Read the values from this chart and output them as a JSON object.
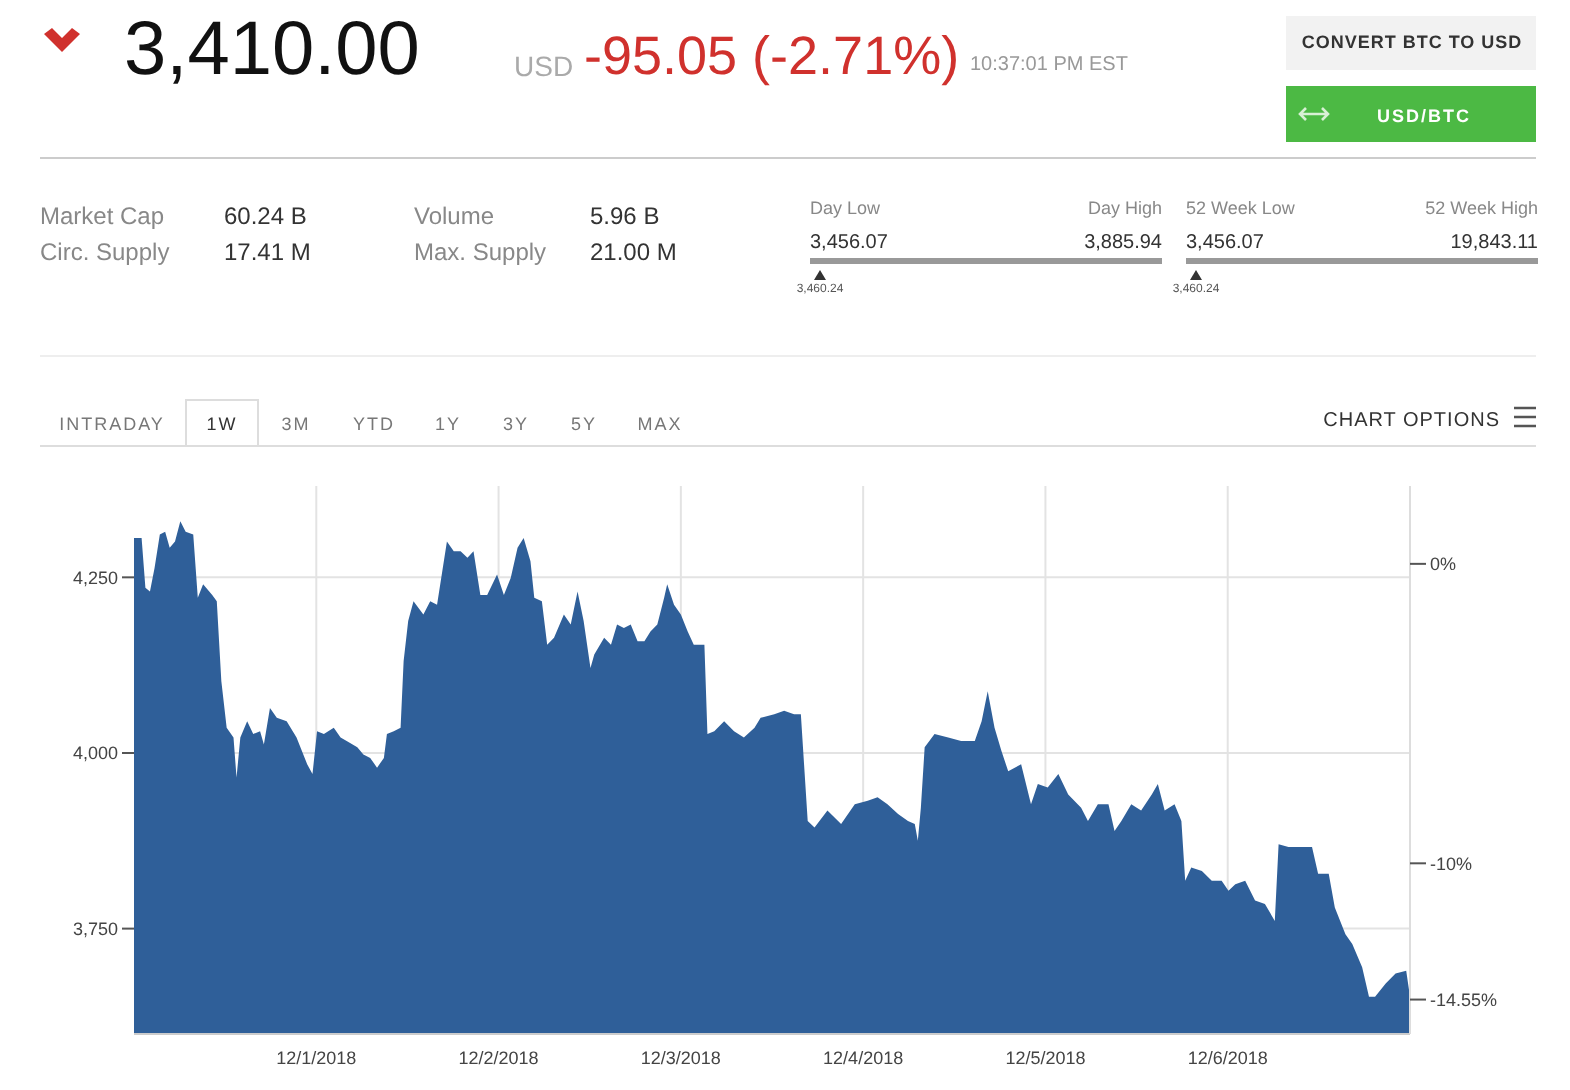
{
  "chart_data": {
    "type": "area",
    "color": "#2f5f99",
    "x": [
      "2018-11-30T00:00",
      "2018-11-30T01:00",
      "2018-11-30T01:30",
      "2018-11-30T02:06",
      "2018-11-30T02:42",
      "2018-11-30T03:24",
      "2018-11-30T04:06",
      "2018-11-30T04:42",
      "2018-11-30T05:24",
      "2018-11-30T06:06",
      "2018-11-30T06:48",
      "2018-11-30T07:48",
      "2018-11-30T08:24",
      "2018-11-30T09:06",
      "2018-11-30T10:18",
      "2018-11-30T10:54",
      "2018-11-30T11:30",
      "2018-11-30T12:12",
      "2018-11-30T13:06",
      "2018-11-30T13:30",
      "2018-11-30T14:00",
      "2018-11-30T14:54",
      "2018-11-30T15:42",
      "2018-11-30T16:36",
      "2018-11-30T17:06",
      "2018-11-30T17:54",
      "2018-11-30T18:48",
      "2018-11-30T20:06",
      "2018-11-30T21:24",
      "2018-11-30T22:48",
      "2018-11-30T23:30",
      "2018-12-01T00:06",
      "2018-12-01T01:00",
      "2018-12-01T02:18",
      "2018-12-01T03:12",
      "2018-12-01T04:00",
      "2018-12-01T05:24",
      "2018-12-01T06:12",
      "2018-12-01T07:06",
      "2018-12-01T08:00",
      "2018-12-01T08:54",
      "2018-12-01T09:18",
      "2018-12-01T10:12",
      "2018-12-01T11:06",
      "2018-12-01T11:30",
      "2018-12-01T12:06",
      "2018-12-01T12:48",
      "2018-12-01T14:06",
      "2018-12-01T15:00",
      "2018-12-01T15:54",
      "2018-12-01T17:12",
      "2018-12-01T18:06",
      "2018-12-01T19:00",
      "2018-12-01T19:54",
      "2018-12-01T20:42",
      "2018-12-01T21:36",
      "2018-12-01T22:30",
      "2018-12-01T23:48",
      "2018-12-02T00:42",
      "2018-12-02T01:36",
      "2018-12-02T02:30",
      "2018-12-02T03:18",
      "2018-12-02T04:12",
      "2018-12-02T04:42",
      "2018-12-02T05:42",
      "2018-12-02T06:24",
      "2018-12-02T07:18",
      "2018-12-02T08:36",
      "2018-12-02T09:30",
      "2018-12-02T10:24",
      "2018-12-02T11:12",
      "2018-12-02T12:06",
      "2018-12-02T12:36",
      "2018-12-02T13:54",
      "2018-12-02T14:48",
      "2018-12-02T15:36",
      "2018-12-02T16:30",
      "2018-12-02T17:24",
      "2018-12-02T18:18",
      "2018-12-02T19:12",
      "2018-12-02T20:00",
      "2018-12-02T20:54",
      "2018-12-02T21:48",
      "2018-12-02T22:12",
      "2018-12-02T23:06",
      "2018-12-03T00:00",
      "2018-12-03T00:54",
      "2018-12-03T01:42",
      "2018-12-03T03:06",
      "2018-12-03T03:30",
      "2018-12-03T04:24",
      "2018-12-03T05:42",
      "2018-12-03T07:00",
      "2018-12-03T08:18",
      "2018-12-03T09:42",
      "2018-12-03T10:30",
      "2018-12-03T12:18",
      "2018-12-03T13:36",
      "2018-12-03T14:54",
      "2018-12-03T15:48",
      "2018-12-03T16:42",
      "2018-12-03T17:36",
      "2018-12-03T19:18",
      "2018-12-03T21:06",
      "2018-12-03T22:54",
      "2018-12-04T00:36",
      "2018-12-04T01:54",
      "2018-12-04T03:12",
      "2018-12-04T04:36",
      "2018-12-04T05:54",
      "2018-12-04T06:48",
      "2018-12-04T07:12",
      "2018-12-04T07:36",
      "2018-12-04T08:06",
      "2018-12-04T09:24",
      "2018-12-04T11:12",
      "2018-12-04T12:54",
      "2018-12-04T14:42",
      "2018-12-04T15:36",
      "2018-12-04T16:24",
      "2018-12-04T17:18",
      "2018-12-04T18:12",
      "2018-12-04T19:06",
      "2018-12-04T20:48",
      "2018-12-04T22:06",
      "2018-12-04T23:00",
      "2018-12-05T00:18",
      "2018-12-05T01:42",
      "2018-12-05T03:00",
      "2018-12-05T04:42",
      "2018-12-05T05:36",
      "2018-12-05T06:54",
      "2018-12-05T08:18",
      "2018-12-05T09:06",
      "2018-12-05T10:00",
      "2018-12-05T11:18",
      "2018-12-05T12:36",
      "2018-12-05T14:00",
      "2018-12-05T14:48",
      "2018-12-05T15:42",
      "2018-12-05T17:00",
      "2018-12-05T17:54",
      "2018-12-05T18:24",
      "2018-12-05T19:12",
      "2018-12-05T20:36",
      "2018-12-05T21:54",
      "2018-12-05T23:12",
      "2018-12-06T00:06",
      "2018-12-06T01:00",
      "2018-12-06T02:18",
      "2018-12-06T03:36",
      "2018-12-06T04:54",
      "2018-12-06T06:12",
      "2018-12-06T06:42",
      "2018-12-06T08:00",
      "2018-12-06T09:42",
      "2018-12-06T11:06",
      "2018-12-06T11:54",
      "2018-12-06T13:18",
      "2018-12-06T14:06",
      "2018-12-06T15:30",
      "2018-12-06T16:24",
      "2018-12-06T17:42",
      "2018-12-06T18:36",
      "2018-12-06T19:24",
      "2018-12-06T20:48",
      "2018-12-06T22:06",
      "2018-12-06T23:30",
      "2018-12-07T00:00"
    ],
    "values": [
      4306,
      4306,
      4235,
      4230,
      4263,
      4311,
      4315,
      4292,
      4301,
      4330,
      4315,
      4311,
      4221,
      4240,
      4225,
      4216,
      4102,
      4036,
      4022,
      3965,
      4022,
      4045,
      4027,
      4031,
      4012,
      4064,
      4050,
      4045,
      4022,
      3984,
      3970,
      4031,
      4027,
      4036,
      4022,
      4017,
      4008,
      3998,
      3993,
      3979,
      3993,
      4027,
      4031,
      4036,
      4131,
      4188,
      4216,
      4197,
      4216,
      4211,
      4301,
      4287,
      4287,
      4278,
      4287,
      4225,
      4225,
      4254,
      4225,
      4249,
      4292,
      4306,
      4273,
      4221,
      4216,
      4154,
      4164,
      4197,
      4183,
      4230,
      4188,
      4121,
      4140,
      4164,
      4154,
      4183,
      4178,
      4183,
      4159,
      4159,
      4173,
      4183,
      4221,
      4240,
      4211,
      4197,
      4173,
      4154,
      4154,
      4027,
      4031,
      4045,
      4031,
      4022,
      4036,
      4050,
      4055,
      4060,
      4055,
      4055,
      3903,
      3894,
      3918,
      3899,
      3927,
      3932,
      3937,
      3927,
      3913,
      3903,
      3899,
      3875,
      3922,
      4008,
      4027,
      4022,
      4017,
      4017,
      4045,
      4088,
      4036,
      4003,
      3974,
      3984,
      3927,
      3956,
      3951,
      3970,
      3941,
      3922,
      3903,
      3927,
      3927,
      3889,
      3903,
      3927,
      3918,
      3941,
      3956,
      3918,
      3927,
      3903,
      3818,
      3837,
      3832,
      3818,
      3818,
      3804,
      3813,
      3818,
      3790,
      3785,
      3761,
      3870,
      3866,
      3866,
      3866,
      3828,
      3828,
      3780,
      3742,
      3728,
      3695,
      3653,
      3653,
      3672,
      3686,
      3690,
      3653
    ],
    "xlim": [
      "2018-11-30T00:00",
      "2018-12-07T00:00"
    ],
    "xticks": [
      {
        "value": "2018-12-01T00:00",
        "label": "12/1/2018"
      },
      {
        "value": "2018-12-02T00:00",
        "label": "12/2/2018"
      },
      {
        "value": "2018-12-03T00:00",
        "label": "12/3/2018"
      },
      {
        "value": "2018-12-04T00:00",
        "label": "12/4/2018"
      },
      {
        "value": "2018-12-05T00:00",
        "label": "12/5/2018"
      },
      {
        "value": "2018-12-06T00:00",
        "label": "12/6/2018"
      }
    ],
    "ylim": [
      3600,
      4380
    ],
    "yticks": [
      {
        "value": 3750,
        "label": "3,750"
      },
      {
        "value": 4000,
        "label": "4,000"
      },
      {
        "value": 4250,
        "label": "4,250"
      }
    ],
    "y2lim": [
      -15.7,
      2.6
    ],
    "y2ticks": [
      {
        "value": 0,
        "label": "0%"
      },
      {
        "value": -10,
        "label": "-10%"
      },
      {
        "value": -14.55,
        "label": "-14.55%"
      }
    ],
    "grid": true,
    "annotations": [
      "3,410.00",
      "USD",
      "-95.05 (-2.71%)",
      "10:37:01 PM EST",
      "CONVERT BTC TO USD",
      "USD/BTC",
      "Market Cap",
      "Circ. Supply",
      "60.24 B",
      "17.41 M",
      "Volume",
      "Max. Supply",
      "5.96 B",
      "21.00 M",
      "Day Low",
      "3,456.07",
      "Day High",
      "3,885.94",
      "3,460.24",
      "52 Week Low",
      "3,456.07",
      "52 Week High",
      "19,843.11",
      "3,460.24",
      "INTRADAY",
      "1W",
      "3M",
      "YTD",
      "1Y",
      "3Y",
      "5Y",
      "MAX",
      "CHART OPTIONS"
    ]
  }
}
